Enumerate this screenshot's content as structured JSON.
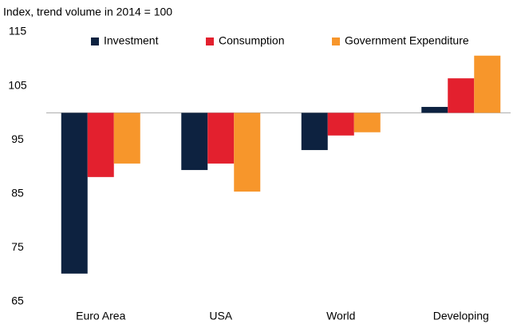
{
  "chart_data": {
    "type": "bar",
    "subtitle": "Index, trend volume in 2014 = 100",
    "categories": [
      "Euro Area",
      "USA",
      "World",
      "Developing"
    ],
    "series": [
      {
        "name": "Investment",
        "color": "#0d2240",
        "values": [
          70.2,
          89.4,
          93.1,
          101.1
        ]
      },
      {
        "name": "Consumption",
        "color": "#e3202e",
        "values": [
          88.1,
          90.6,
          95.8,
          106.4
        ]
      },
      {
        "name": "Government Expenditure",
        "color": "#f7962b",
        "values": [
          90.6,
          85.4,
          96.4,
          110.6
        ]
      }
    ],
    "baseline": 100,
    "ylim": [
      65,
      115
    ],
    "yticks": [
      65,
      75,
      85,
      95,
      105,
      115
    ],
    "legend": "top",
    "grid": false
  }
}
